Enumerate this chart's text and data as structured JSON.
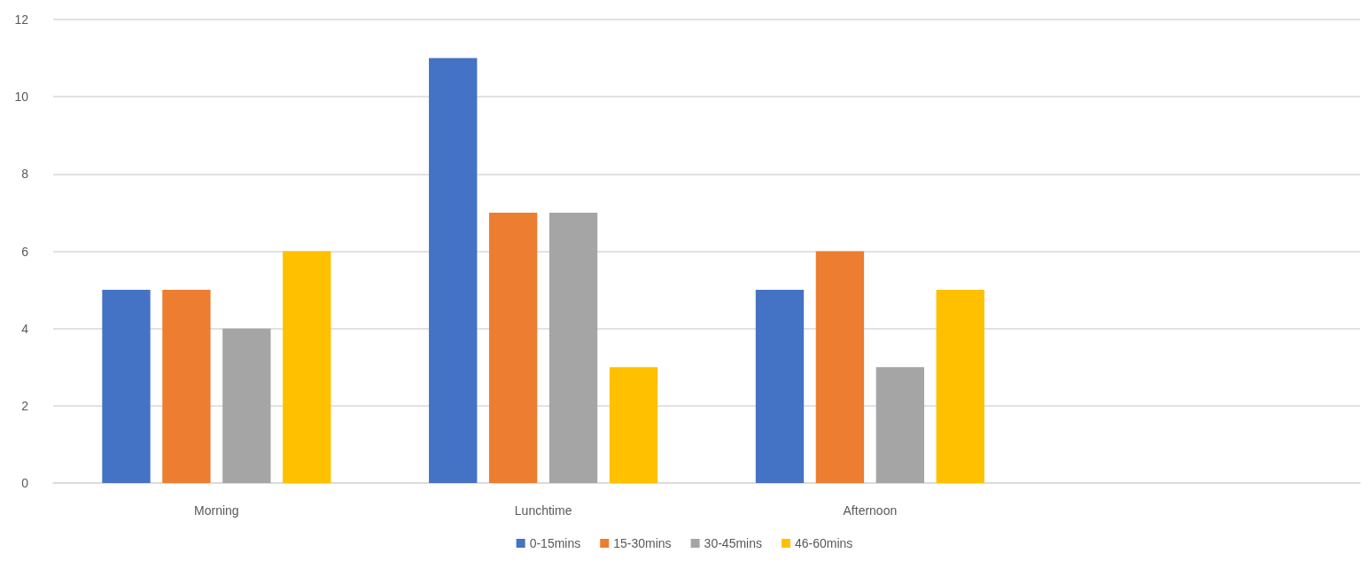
{
  "chart_data": {
    "type": "bar",
    "categories": [
      "Morning",
      "Lunchtime",
      "Afternoon",
      null
    ],
    "series": [
      {
        "name": "0-15mins",
        "color": "#4472c4",
        "values": [
          5,
          11,
          5,
          null
        ]
      },
      {
        "name": "15-30mins",
        "color": "#ed7d31",
        "values": [
          5,
          7,
          6,
          null
        ]
      },
      {
        "name": "30-45mins",
        "color": "#a5a5a5",
        "values": [
          4,
          7,
          3,
          null
        ]
      },
      {
        "name": "46-60mins",
        "color": "#ffc000",
        "values": [
          6,
          3,
          5,
          null
        ]
      }
    ],
    "ylim": [
      0,
      12
    ],
    "yticks": [
      0,
      2,
      4,
      6,
      8,
      10,
      12
    ],
    "grid": "y",
    "legend": "bottom"
  }
}
